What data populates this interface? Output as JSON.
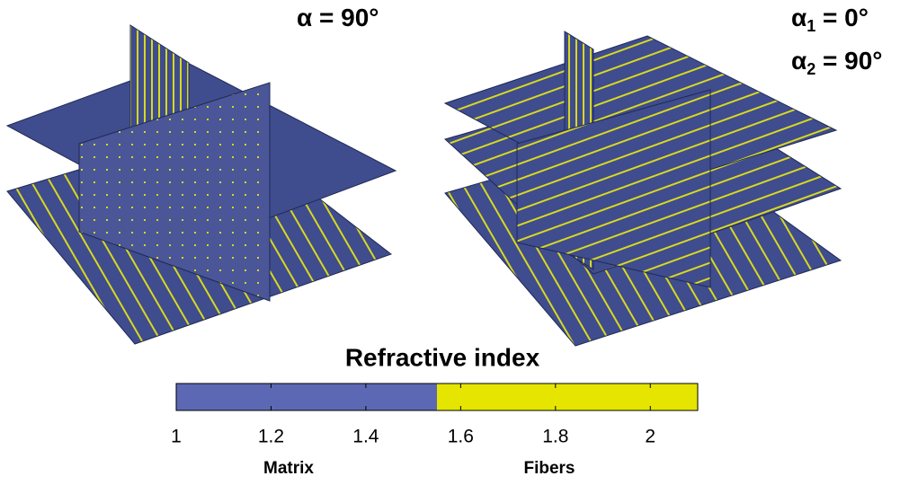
{
  "chart_data": {
    "type": "colorbar",
    "title": "Refractive index",
    "xlim": [
      1,
      2.1
    ],
    "xticks": [
      1,
      1.2,
      1.4,
      1.6,
      1.8,
      2
    ],
    "segments": [
      {
        "name": "Matrix",
        "color": "#5d68b4",
        "range": [
          1,
          1.55
        ]
      },
      {
        "name": "Fibers",
        "color": "#e5e500",
        "range": [
          1.55,
          2.1
        ]
      }
    ],
    "annotations": [
      {
        "symbol": "α",
        "sub": null,
        "text": " = 90°"
      },
      {
        "symbol": "α",
        "sub": "1",
        "text": " = 0°"
      },
      {
        "symbol": "α",
        "sub": "2",
        "text": " = 90°"
      }
    ]
  }
}
